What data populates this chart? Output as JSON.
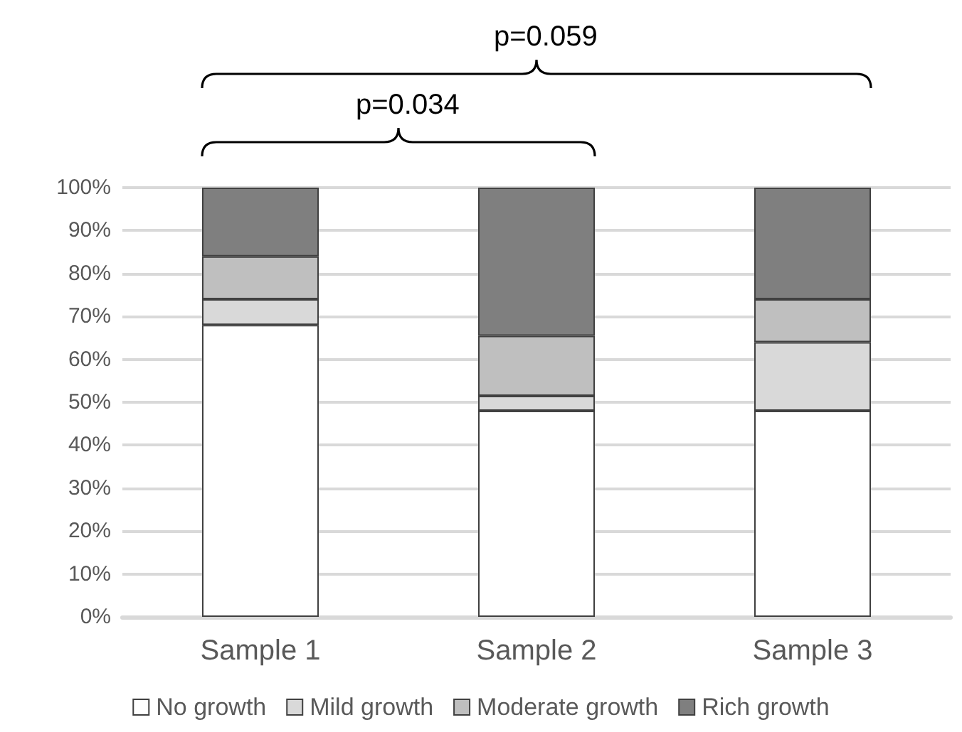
{
  "chart_data": {
    "type": "bar",
    "stacked": true,
    "categories": [
      "Sample 1",
      "Sample 2",
      "Sample 3"
    ],
    "series": [
      {
        "name": "No growth",
        "color": "#ffffff",
        "values": [
          68,
          48,
          48
        ]
      },
      {
        "name": "Mild growth",
        "color": "#d9d9d9",
        "values": [
          6,
          3.5,
          16
        ]
      },
      {
        "name": "Moderate growth",
        "color": "#bfbfbf",
        "values": [
          10,
          14,
          10
        ]
      },
      {
        "name": "Rich growth",
        "color": "#7f7f7f",
        "values": [
          16,
          34.5,
          26
        ]
      }
    ],
    "ylim": [
      0,
      100
    ],
    "yticks": [
      {
        "value": 0,
        "label": "0%"
      },
      {
        "value": 10,
        "label": "10%"
      },
      {
        "value": 20,
        "label": "20%"
      },
      {
        "value": 30,
        "label": "30%"
      },
      {
        "value": 40,
        "label": "40%"
      },
      {
        "value": 50,
        "label": "50%"
      },
      {
        "value": 60,
        "label": "60%"
      },
      {
        "value": 70,
        "label": "70%"
      },
      {
        "value": 80,
        "label": "80%"
      },
      {
        "value": 90,
        "label": "90%"
      },
      {
        "value": 100,
        "label": "100%"
      }
    ],
    "grid": "y",
    "legend": "bottom",
    "annotations": [
      "p=0.034",
      "p=0.059"
    ]
  }
}
